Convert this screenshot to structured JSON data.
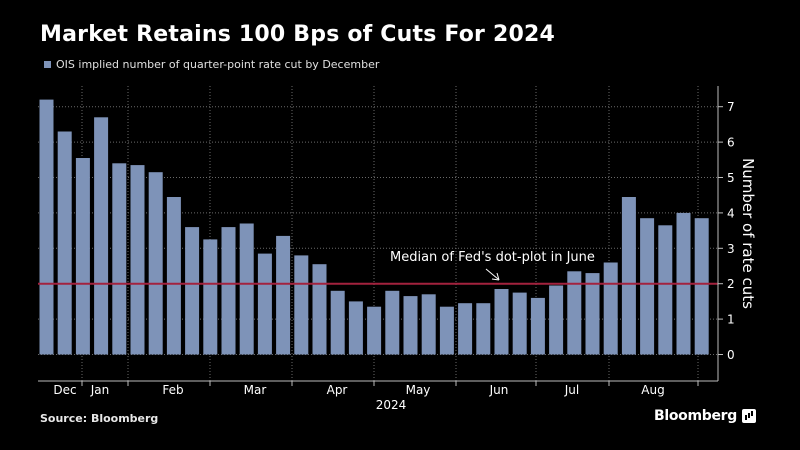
{
  "title": "Market Retains 100 Bps of Cuts For 2024",
  "legend_label": "OIS implied number of quarter-point rate cut by December",
  "source": "Source: Bloomberg",
  "brand": "Bloomberg",
  "colors": {
    "bar": "#7e93b8",
    "reference": "#a3223e",
    "grid": "#6a6a6a",
    "background": "#000000",
    "text": "#ffffff"
  },
  "chart_data": {
    "type": "bar",
    "title": "Market Retains 100 Bps of Cuts For 2024",
    "ylabel": "Number of rate cuts",
    "xlabel": "2024",
    "ylim": [
      -0.75,
      7.5
    ],
    "yticks": [
      0,
      1,
      2,
      3,
      4,
      5,
      6,
      7
    ],
    "legend": "top-left",
    "series": [
      {
        "name": "OIS implied number of quarter-point rate cut by December",
        "values": [
          7.2,
          6.3,
          5.55,
          6.7,
          5.4,
          5.35,
          5.15,
          4.45,
          3.6,
          3.25,
          3.6,
          3.7,
          2.85,
          3.35,
          2.8,
          2.55,
          1.8,
          1.5,
          1.35,
          1.8,
          1.65,
          1.7,
          1.35,
          1.45,
          1.45,
          1.85,
          1.75,
          1.6,
          1.95,
          2.35,
          2.3,
          2.6,
          4.45,
          3.85,
          3.65,
          4.0,
          3.85
        ]
      }
    ],
    "month_labels": [
      "Dec",
      "Jan",
      "Feb",
      "Mar",
      "Apr",
      "May",
      "Jun",
      "Jul",
      "Aug"
    ],
    "year_label": "2024",
    "reference_line": {
      "value": 2,
      "label": "Median of Fed's dot-plot in June"
    }
  }
}
